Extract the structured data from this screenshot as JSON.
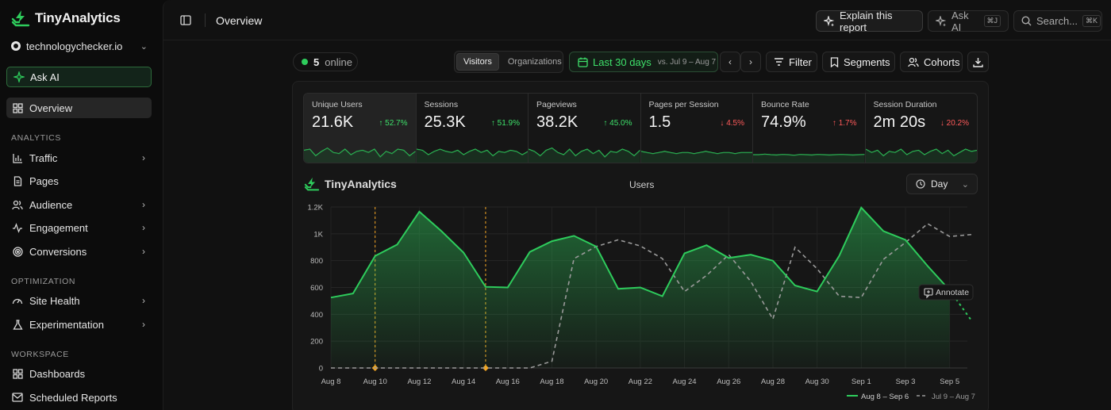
{
  "brand": {
    "name": "TinyAnalytics"
  },
  "site": {
    "name": "technologychecker.io"
  },
  "sidebar": {
    "ask_ai": "Ask AI",
    "overview": "Overview",
    "sections": {
      "analytics": "ANALYTICS",
      "optimization": "OPTIMIZATION",
      "workspace": "WORKSPACE"
    },
    "analytics_items": [
      "Traffic",
      "Pages",
      "Audience",
      "Engagement",
      "Conversions"
    ],
    "optimization_items": [
      "Site Health",
      "Experimentation"
    ],
    "workspace_items": [
      "Dashboards",
      "Scheduled Reports"
    ]
  },
  "header": {
    "title": "Overview",
    "explain": "Explain this report",
    "ask_ai": "Ask AI",
    "ask_ai_kbd": "⌘J",
    "search": "Search...",
    "search_kbd": "⌘K"
  },
  "toolbar": {
    "online_count": "5",
    "online_label": "online",
    "seg_visitors": "Visitors",
    "seg_orgs": "Organizations",
    "date_range": "Last 30 days",
    "compare": "vs. Jul 9 – Aug 7",
    "filter": "Filter",
    "segments": "Segments",
    "cohorts": "Cohorts"
  },
  "metrics": [
    {
      "label": "Unique Users",
      "value": "21.6K",
      "change": "52.7%",
      "dir": "up"
    },
    {
      "label": "Sessions",
      "value": "25.3K",
      "change": "51.9%",
      "dir": "up"
    },
    {
      "label": "Pageviews",
      "value": "38.2K",
      "change": "45.0%",
      "dir": "up"
    },
    {
      "label": "Pages per Session",
      "value": "1.5",
      "change": "4.5%",
      "dir": "down"
    },
    {
      "label": "Bounce Rate",
      "value": "74.9%",
      "change": "1.7%",
      "dir": "down"
    },
    {
      "label": "Session Duration",
      "value": "2m 20s",
      "change": "20.2%",
      "dir": "down"
    }
  ],
  "chart_header": {
    "title": "Users",
    "granularity": "Day",
    "annotate": "Annotate"
  },
  "colors": {
    "accent": "#2ecc5c",
    "compare": "#9a9a9a",
    "annotation": "#f5a623",
    "down": "#ff5a5a"
  },
  "chart_data": {
    "type": "area",
    "title": "Users",
    "ylim": [
      0,
      1200
    ],
    "yticks": [
      "0",
      "200",
      "400",
      "600",
      "800",
      "1K",
      "1.2K"
    ],
    "ytick_values": [
      0,
      200,
      400,
      600,
      800,
      1000,
      1200
    ],
    "xticks": [
      "Aug 8",
      "Aug 10",
      "Aug 12",
      "Aug 14",
      "Aug 16",
      "Aug 18",
      "Aug 20",
      "Aug 22",
      "Aug 24",
      "Aug 26",
      "Aug 28",
      "Aug 30",
      "Sep 1",
      "Sep 3",
      "Sep 5"
    ],
    "annotation_days": [
      2,
      7
    ],
    "series": [
      {
        "name": "Aug 8 – Sep 6",
        "values": [
          525,
          555,
          835,
          920,
          1165,
          1020,
          860,
          605,
          600,
          865,
          945,
          985,
          905,
          590,
          600,
          535,
          855,
          915,
          820,
          845,
          800,
          615,
          570,
          835,
          1195,
          1020,
          955,
          760,
          580,
          350
        ],
        "incomplete_from": 28
      },
      {
        "name": "Jul 9 – Aug 7",
        "values": [
          0,
          0,
          0,
          0,
          0,
          0,
          0,
          0,
          0,
          0,
          50,
          815,
          905,
          955,
          910,
          815,
          570,
          690,
          845,
          645,
          365,
          900,
          740,
          535,
          525,
          810,
          935,
          1075,
          980,
          995
        ]
      }
    ]
  }
}
